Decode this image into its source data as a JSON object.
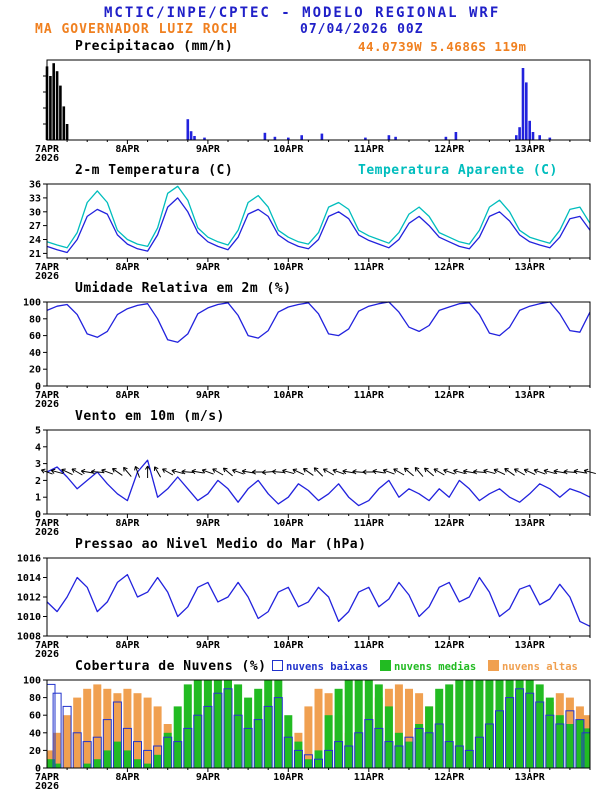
{
  "header": {
    "line1": "MCTIC/INPE/CPTEC - MODELO REGIONAL WRF",
    "station": "MA GOVERNADOR LUIZ ROCH",
    "run": "07/04/2026 00Z",
    "coords": "44.0739W 5.4686S 119m"
  },
  "colors": {
    "blue": "#2020c8",
    "orange": "#f08020",
    "cyan": "#00bdbd",
    "line_blue": "#2222dd",
    "black": "#000000"
  },
  "xaxis": {
    "end_hour": 162,
    "major_every": 24,
    "minor_every": 6,
    "day_labels": [
      "7APR",
      "8APR",
      "9APR",
      "10APR",
      "11APR",
      "12APR",
      "13APR"
    ],
    "year_label": "2026"
  },
  "chart_data": [
    {
      "type": "bar",
      "title": "Precipitacao (mm/h)",
      "ylim": [
        0,
        10
      ],
      "yticks": [],
      "yticks_unlabeled": [
        2,
        4,
        6,
        8
      ],
      "bar_color": "#2222dd",
      "bar_width_hours": 1,
      "bars": [
        {
          "h": 0,
          "v": 9.2,
          "c": "#000000"
        },
        {
          "h": 1,
          "v": 8.0,
          "c": "#000000"
        },
        {
          "h": 2,
          "v": 9.6,
          "c": "#000000"
        },
        {
          "h": 3,
          "v": 8.6,
          "c": "#000000"
        },
        {
          "h": 4,
          "v": 6.8,
          "c": "#000000"
        },
        {
          "h": 5,
          "v": 4.2,
          "c": "#000000"
        },
        {
          "h": 6,
          "v": 2.0,
          "c": "#000000"
        },
        {
          "h": 42,
          "v": 2.6
        },
        {
          "h": 43,
          "v": 1.1
        },
        {
          "h": 44,
          "v": 0.5
        },
        {
          "h": 47,
          "v": 0.3
        },
        {
          "h": 65,
          "v": 0.9
        },
        {
          "h": 68,
          "v": 0.4
        },
        {
          "h": 72,
          "v": 0.3
        },
        {
          "h": 76,
          "v": 0.6
        },
        {
          "h": 82,
          "v": 0.8
        },
        {
          "h": 95,
          "v": 0.3
        },
        {
          "h": 102,
          "v": 0.6
        },
        {
          "h": 104,
          "v": 0.4
        },
        {
          "h": 119,
          "v": 0.4
        },
        {
          "h": 122,
          "v": 1.0
        },
        {
          "h": 140,
          "v": 0.6
        },
        {
          "h": 141,
          "v": 1.6
        },
        {
          "h": 142,
          "v": 9.0
        },
        {
          "h": 143,
          "v": 7.2
        },
        {
          "h": 144,
          "v": 2.4
        },
        {
          "h": 145,
          "v": 1.0
        },
        {
          "h": 147,
          "v": 0.6
        },
        {
          "h": 150,
          "v": 0.3
        }
      ]
    },
    {
      "type": "line",
      "title": "2-m Temperatura (C)",
      "right_label": "Temperatura Aparente (C)",
      "ylim": [
        20,
        36
      ],
      "yticks": [
        21,
        24,
        27,
        30,
        33,
        36
      ],
      "step_hours": 3,
      "series": [
        {
          "name": "temperatura-2m",
          "color": "#2222dd",
          "values": [
            22.5,
            21.8,
            21.2,
            24,
            29,
            30.5,
            29.5,
            25,
            23,
            22,
            21.5,
            25,
            31,
            33,
            30,
            25.5,
            23.5,
            22.5,
            21.8,
            24.5,
            29.5,
            30.5,
            29,
            25,
            23.5,
            22.5,
            22,
            24,
            29,
            30,
            28.5,
            25,
            23.8,
            23,
            22.2,
            24,
            27.5,
            29,
            27,
            24.5,
            23.5,
            22.5,
            22,
            24.5,
            29,
            30,
            28,
            25,
            23.5,
            22.8,
            22.2,
            24.5,
            28.5,
            29,
            26
          ]
        },
        {
          "name": "temperatura-aparente",
          "color": "#00bdbd",
          "values": [
            23.5,
            22.8,
            22.2,
            25.5,
            32,
            34.5,
            32,
            26,
            24,
            23,
            22.5,
            26.5,
            34,
            35.5,
            32.5,
            26.5,
            24.5,
            23.5,
            22.8,
            26,
            32,
            33.5,
            31,
            26,
            24.5,
            23.5,
            23,
            25.5,
            31,
            32,
            30.5,
            26,
            24.8,
            24,
            23.2,
            25.5,
            29.5,
            31,
            29,
            25.5,
            24.5,
            23.5,
            23,
            26,
            31,
            32.5,
            30,
            26,
            24.5,
            23.8,
            23.2,
            26,
            30.5,
            31,
            27.5
          ]
        }
      ]
    },
    {
      "type": "line",
      "title": "Umidade Relativa em 2m (%)",
      "ylim": [
        0,
        100
      ],
      "yticks": [
        0,
        20,
        40,
        60,
        80,
        100
      ],
      "step_hours": 3,
      "series": [
        {
          "name": "umidade-relativa",
          "color": "#2222dd",
          "values": [
            90,
            95,
            97,
            85,
            62,
            58,
            65,
            85,
            92,
            96,
            98,
            80,
            55,
            52,
            62,
            86,
            93,
            97,
            99,
            84,
            60,
            57,
            66,
            88,
            94,
            97,
            99,
            86,
            62,
            60,
            68,
            89,
            95,
            98,
            100,
            88,
            70,
            65,
            72,
            90,
            94,
            98,
            99,
            85,
            63,
            60,
            70,
            90,
            95,
            98,
            100,
            86,
            66,
            64,
            88
          ]
        }
      ]
    },
    {
      "type": "wind",
      "title": "Vento em 10m (m/s)",
      "ylim": [
        0,
        5
      ],
      "yticks": [
        0,
        1,
        2,
        3,
        4,
        5
      ],
      "step_hours": 3,
      "series": [
        {
          "name": "velocidade-vento",
          "color": "#2222dd",
          "values": [
            2.5,
            2.8,
            2.2,
            1.5,
            2,
            2.5,
            1.8,
            1.2,
            0.8,
            2.5,
            3.2,
            1,
            1.5,
            2.2,
            1.5,
            0.8,
            1.2,
            2,
            1.5,
            0.7,
            1.5,
            2,
            1.2,
            0.6,
            1,
            1.8,
            1.4,
            0.8,
            1.2,
            1.8,
            1,
            0.5,
            0.8,
            1.5,
            2,
            1,
            1.5,
            1.2,
            0.8,
            1.5,
            1,
            2,
            1.5,
            0.8,
            1.2,
            1.5,
            1,
            0.7,
            1.2,
            1.8,
            1.5,
            1,
            1.5,
            1.3,
            1
          ]
        }
      ],
      "barbs": {
        "y": 2.5,
        "color": "#000000",
        "step_hours": 3,
        "angles_deg": [
          200,
          195,
          205,
          210,
          190,
          185,
          200,
          215,
          230,
          250,
          270,
          240,
          210,
          195,
          185,
          190,
          200,
          210,
          220,
          200,
          190,
          180,
          175,
          185,
          195,
          205,
          215,
          225,
          210,
          200,
          190,
          185,
          180,
          190,
          200,
          210,
          220,
          230,
          220,
          210,
          200,
          195,
          190,
          185,
          195,
          205,
          215,
          210,
          205,
          200,
          195,
          190,
          185,
          190,
          195
        ]
      }
    },
    {
      "type": "line",
      "title": "Pressao ao Nivel Medio do Mar (hPa)",
      "ylim": [
        1008,
        1016
      ],
      "yticks": [
        1008,
        1010,
        1012,
        1014,
        1016
      ],
      "step_hours": 3,
      "series": [
        {
          "name": "pressao-nivel-mar",
          "color": "#2222dd",
          "values": [
            1011.5,
            1010.5,
            1012,
            1014,
            1013,
            1010.5,
            1011.5,
            1013.5,
            1014.3,
            1012,
            1012.5,
            1014,
            1012.5,
            1010,
            1011,
            1013,
            1013.5,
            1011.5,
            1012,
            1013.5,
            1012,
            1009.8,
            1010.5,
            1012.5,
            1013,
            1011,
            1011.5,
            1013,
            1012,
            1009.5,
            1010.5,
            1012.5,
            1013,
            1011,
            1011.8,
            1013.5,
            1012.2,
            1010,
            1011,
            1013,
            1013.5,
            1011.5,
            1012,
            1014,
            1012.5,
            1010,
            1010.8,
            1012.8,
            1013.2,
            1011.2,
            1011.8,
            1013.3,
            1012,
            1009.5,
            1009
          ]
        }
      ]
    },
    {
      "type": "cloudbars",
      "title": "Cobertura de Nuvens (%)",
      "ylim": [
        0,
        100
      ],
      "yticks": [
        0,
        20,
        40,
        60,
        80,
        100
      ],
      "step_hours": 3,
      "draw_order": [
        2,
        1,
        0
      ],
      "series": [
        {
          "name": "nuvens-baixas",
          "label": "nuvens baixas",
          "color": "#2233cc",
          "style": "outline",
          "values": [
            95,
            85,
            70,
            40,
            30,
            35,
            55,
            75,
            45,
            30,
            20,
            25,
            35,
            30,
            45,
            60,
            70,
            85,
            90,
            60,
            45,
            55,
            70,
            80,
            35,
            20,
            15,
            10,
            20,
            30,
            25,
            40,
            55,
            45,
            30,
            25,
            35,
            45,
            40,
            50,
            30,
            25,
            20,
            35,
            50,
            65,
            80,
            90,
            85,
            75,
            60,
            50,
            65,
            55,
            40
          ]
        },
        {
          "name": "nuvens-medias",
          "label": "nuvens medias",
          "color": "#22bb22",
          "style": "fill",
          "values": [
            10,
            5,
            0,
            0,
            5,
            10,
            20,
            30,
            20,
            10,
            5,
            15,
            40,
            70,
            95,
            100,
            100,
            100,
            100,
            95,
            80,
            90,
            100,
            100,
            60,
            30,
            10,
            20,
            60,
            90,
            100,
            100,
            100,
            95,
            70,
            40,
            30,
            50,
            70,
            90,
            95,
            100,
            100,
            100,
            100,
            100,
            100,
            100,
            100,
            95,
            80,
            60,
            50,
            55,
            45
          ]
        },
        {
          "name": "nuvens-altas",
          "label": "nuvens altas",
          "color": "#f0a050",
          "style": "fill",
          "values": [
            20,
            40,
            60,
            80,
            90,
            95,
            90,
            85,
            90,
            85,
            80,
            70,
            50,
            30,
            20,
            10,
            5,
            0,
            0,
            10,
            30,
            40,
            30,
            20,
            15,
            40,
            70,
            90,
            85,
            60,
            40,
            30,
            60,
            80,
            90,
            95,
            90,
            85,
            70,
            50,
            30,
            20,
            10,
            5,
            0,
            10,
            20,
            30,
            40,
            60,
            75,
            85,
            80,
            70,
            60
          ]
        }
      ]
    }
  ]
}
